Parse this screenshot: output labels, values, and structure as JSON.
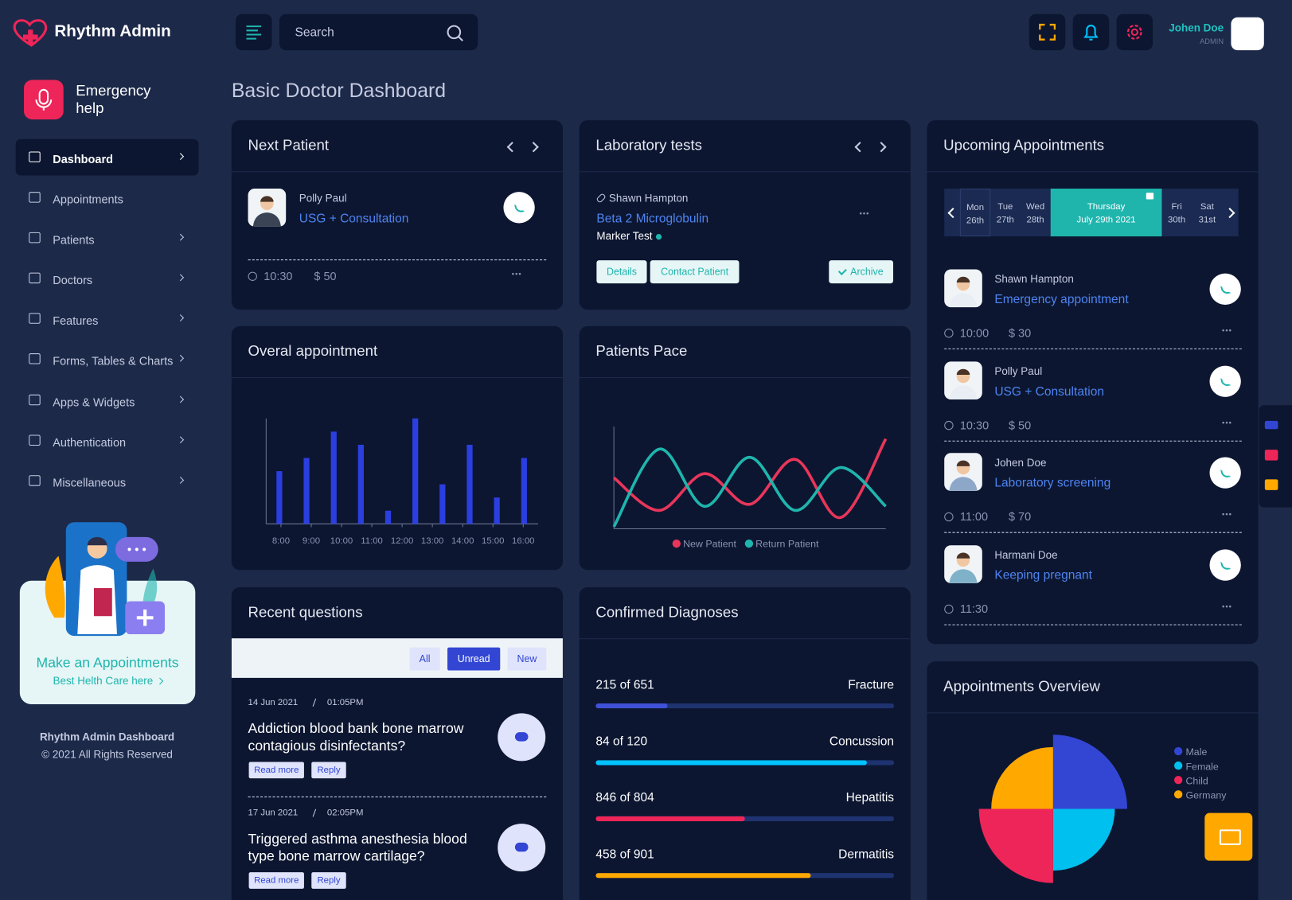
{
  "header": {
    "brand": "Rhythm Admin",
    "search_placeholder": "Search",
    "user_name": "Johen Doe",
    "user_role": "ADMIN"
  },
  "sidebar": {
    "emergency": "Emergency help",
    "menu": [
      "Dashboard",
      "Appointments",
      "Patients",
      "Doctors",
      "Features",
      "Forms, Tables & Charts",
      "Apps & Widgets",
      "Authentication",
      "Miscellaneous"
    ],
    "promo_title": "Make an Appointments",
    "promo_link": "Best Helth Care here",
    "footer_title": "Rhythm Admin Dashboard",
    "footer_copy": "© 2021 All Rights Reserved"
  },
  "page_title": "Basic Doctor Dashboard",
  "next_patient": {
    "title": "Next Patient",
    "name": "Polly Paul",
    "service": "USG + Consultation",
    "time": "10:30",
    "price": "$ 50"
  },
  "lab_tests": {
    "title": "Laboratory tests",
    "name": "Shawn Hampton",
    "test": "Beta 2 Microglobulin",
    "subtitle": "Marker Test",
    "buttons": [
      "Details",
      "Contact Patient",
      "Archive"
    ]
  },
  "upcoming": {
    "title": "Upcoming Appointments",
    "days": [
      {
        "day": "Mon",
        "date": "26th"
      },
      {
        "day": "Tue",
        "date": "27th"
      },
      {
        "day": "Wed",
        "date": "28th"
      },
      {
        "day": "Thursday",
        "date": "July 29th 2021"
      },
      {
        "day": "Fri",
        "date": "30th"
      },
      {
        "day": "Sat",
        "date": "31st"
      }
    ],
    "appointments": [
      {
        "name": "Shawn Hampton",
        "type": "Emergency appointment",
        "time": "10:00",
        "price": "$ 30"
      },
      {
        "name": "Polly Paul",
        "type": "USG + Consultation",
        "time": "10:30",
        "price": "$ 50"
      },
      {
        "name": "Johen Doe",
        "type": "Laboratory screening",
        "time": "11:00",
        "price": "$ 70"
      },
      {
        "name": "Harmani Doe",
        "type": "Keeping pregnant",
        "time": "11:30"
      }
    ]
  },
  "questions": {
    "title": "Recent questions",
    "filters": [
      "All",
      "Unread",
      "New"
    ],
    "actions": [
      "Read more",
      "Reply"
    ],
    "items": [
      {
        "date": "14 Jun 2021",
        "time": "01:05PM",
        "text": "Addiction blood bank bone marrow contagious disinfectants?"
      },
      {
        "date": "17 Jun 2021",
        "time": "02:05PM",
        "text": "Triggered asthma anesthesia blood type bone marrow cartilage?"
      }
    ]
  },
  "diagnoses": {
    "title": "Confirmed Diagnoses",
    "items": [
      {
        "label": "215 of 651",
        "name": "Fracture",
        "value": 24,
        "color": "#3f51d8"
      },
      {
        "label": "84 of 120",
        "name": "Concussion",
        "value": 91,
        "color": "#00c3ff"
      },
      {
        "label": "846 of 804",
        "name": "Hepatitis",
        "value": 50,
        "color": "#ee2558"
      },
      {
        "label": "458 of 901",
        "name": "Dermatitis",
        "value": 72,
        "color": "#ffa800"
      }
    ]
  },
  "chart_data": [
    {
      "type": "bar",
      "title": "Overal appointment",
      "categories": [
        "8:00",
        "9:00",
        "10:00",
        "11:00",
        "12:00",
        "13:00",
        "14:00",
        "15:00",
        "16:00",
        null
      ],
      "values": [
        40,
        50,
        70,
        60,
        10,
        80,
        30,
        60,
        20,
        50
      ],
      "color": "#2b3ee0"
    },
    {
      "type": "line",
      "title": "Patients Pace",
      "series": [
        {
          "name": "New Patient",
          "color": "#e8365a",
          "values": [
            50,
            18,
            54,
            24,
            68,
            11,
            88
          ]
        },
        {
          "name": "Return Patient",
          "color": "#1fb5ad",
          "values": [
            2,
            78,
            22,
            70,
            18,
            60,
            22
          ]
        }
      ]
    },
    {
      "type": "polarArea",
      "title": "Appointments Overview",
      "categories": [
        "Male",
        "Female",
        "Child",
        "Germany"
      ],
      "values": [
        90,
        75,
        90,
        75
      ],
      "colors": [
        "#3246d3",
        "#00c0ef",
        "#ee2558",
        "#ffa800"
      ]
    }
  ]
}
